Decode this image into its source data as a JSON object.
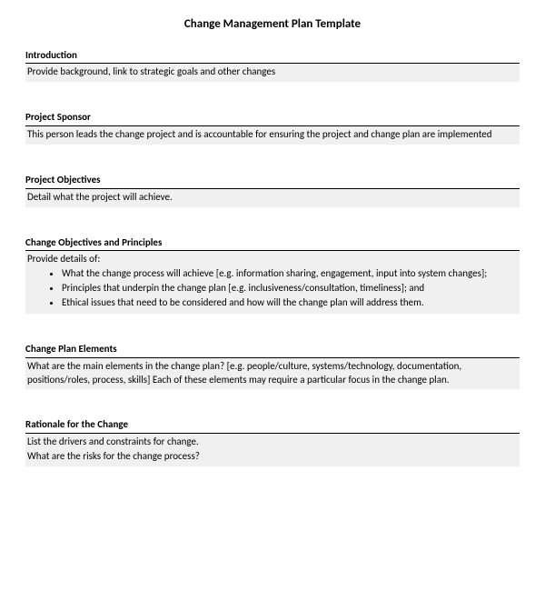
{
  "title": "Change Management Plan Template",
  "sections": [
    {
      "heading": "Introduction",
      "paragraphs": [
        "Provide background, link to strategic goals and other changes"
      ],
      "bullets": []
    },
    {
      "heading": "Project Sponsor",
      "paragraphs": [
        "This person leads the change project and is accountable for ensuring the project and change plan are implemented"
      ],
      "bullets": []
    },
    {
      "heading": "Project Objectives",
      "paragraphs": [
        "Detail what the project will achieve."
      ],
      "bullets": []
    },
    {
      "heading": "Change Objectives and Principles",
      "paragraphs": [
        "Provide details of:"
      ],
      "bullets": [
        "What the change process will achieve [e.g. information sharing, engagement, input into system changes];",
        "Principles that underpin the change plan [e.g. inclusiveness/consultation, timeliness]; and",
        "Ethical issues that need to be considered and how will the change plan will address them."
      ]
    },
    {
      "heading": "Change Plan Elements",
      "paragraphs": [
        "What are the main elements in the change plan? [e.g. people/culture, systems/technology, documentation, positions/roles, process, skills] Each of these elements may require a particular focus in the change plan."
      ],
      "bullets": []
    },
    {
      "heading": "Rationale for the Change",
      "paragraphs": [
        "List the drivers and constraints for change.",
        "What are the risks for the change process?"
      ],
      "bullets": []
    }
  ],
  "colors": {
    "section_body_bg": "#f0f0f0",
    "rule": "#000000",
    "text": "#000000"
  },
  "typography": {
    "title_fontsize": 13,
    "body_fontsize": 11,
    "heading_weight": "bold"
  }
}
